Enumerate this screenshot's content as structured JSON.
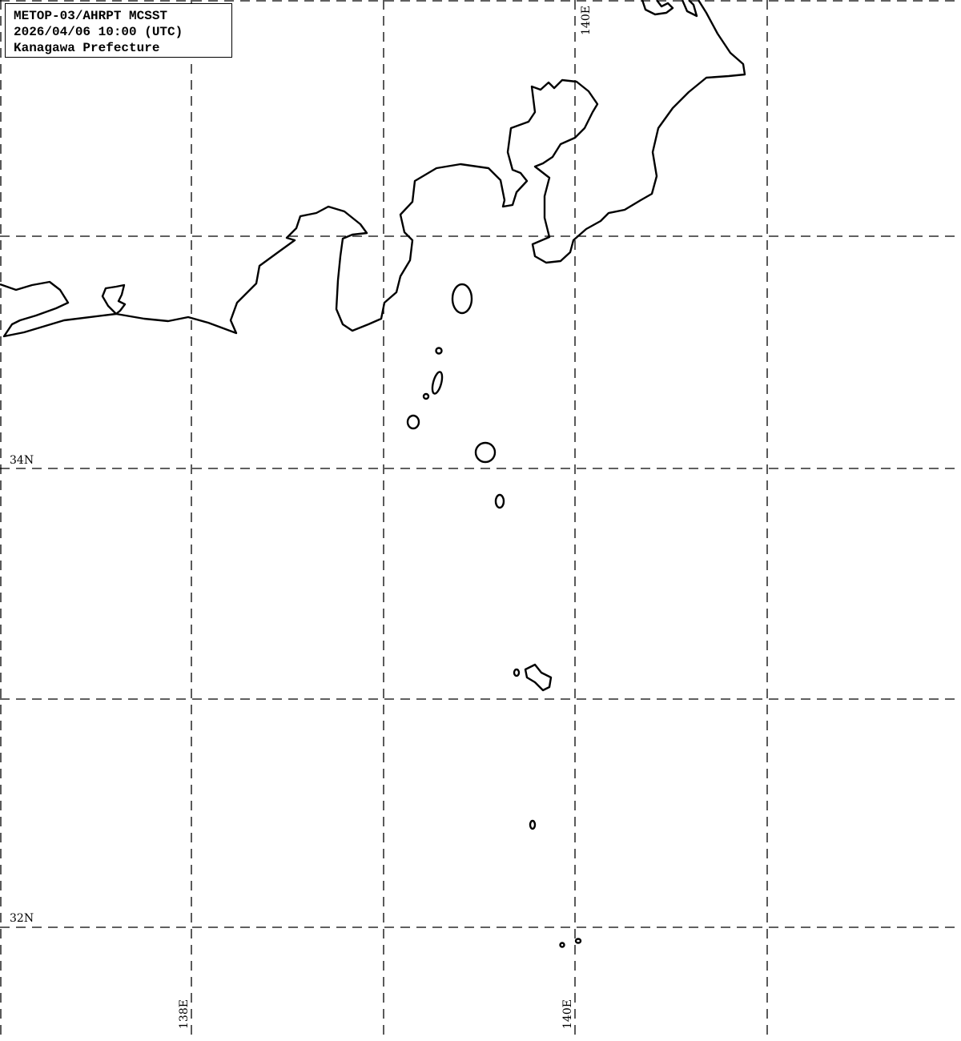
{
  "info_box": {
    "line1": "METOP-03/AHRPT MCSST",
    "line2": "2026/04/06 10:00 (UTC)",
    "line3": "Kanagawa Prefecture"
  },
  "grid_labels": {
    "lat_34": "34N",
    "lat_32": "32N",
    "lon_138_bottom": "138E",
    "lon_140_bottom": "140E",
    "lon_140_top": "140E"
  },
  "colors": {
    "coastline": "#000000",
    "grid": "#000000",
    "background": "#ffffff"
  }
}
